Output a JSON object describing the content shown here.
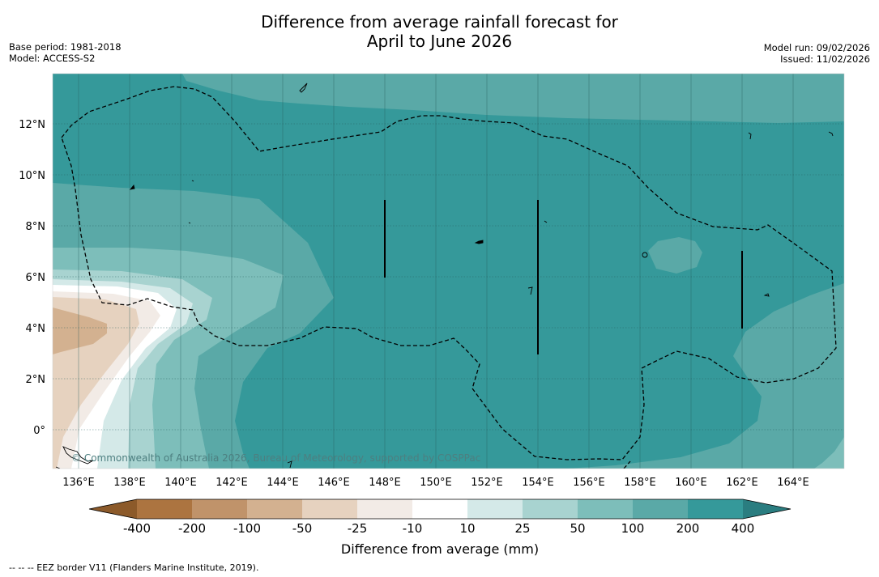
{
  "header": {
    "title_line1": "Difference from average rainfall forecast for",
    "title_line2": "April to June 2026",
    "base_period": "Base period: 1981-2018",
    "model": "Model: ACCESS-S2",
    "model_run": "Model run: 09/02/2026",
    "issued": "Issued: 11/02/2026"
  },
  "map": {
    "lat_labels": [
      "12°N",
      "10°N",
      "8°N",
      "6°N",
      "4°N",
      "2°N",
      "0°"
    ],
    "lon_labels": [
      "136°E",
      "138°E",
      "140°E",
      "142°E",
      "144°E",
      "146°E",
      "148°E",
      "150°E",
      "152°E",
      "154°E",
      "156°E",
      "158°E",
      "160°E",
      "162°E",
      "164°E"
    ],
    "watermark": "© Commonwealth of Australia 2026, Bureau of Meteorology, supported by COSPPac"
  },
  "legend": {
    "ticks": [
      "-400",
      "-200",
      "-100",
      "-50",
      "-25",
      "-10",
      "10",
      "25",
      "50",
      "100",
      "200",
      "400"
    ],
    "colors": [
      "#8c5a2a",
      "#ac7440",
      "#c0936a",
      "#d3b190",
      "#e6d2bf",
      "#f2ebe6",
      "#ffffff",
      "#d4e9e8",
      "#a8d3d0",
      "#7dbeba",
      "#5aa9a7",
      "#35999a",
      "#2a7d80"
    ],
    "label": "Difference from average (mm)"
  },
  "footnote": "--  --  -- EEZ border V11 (Flanders Marine Institute, 2019)."
}
